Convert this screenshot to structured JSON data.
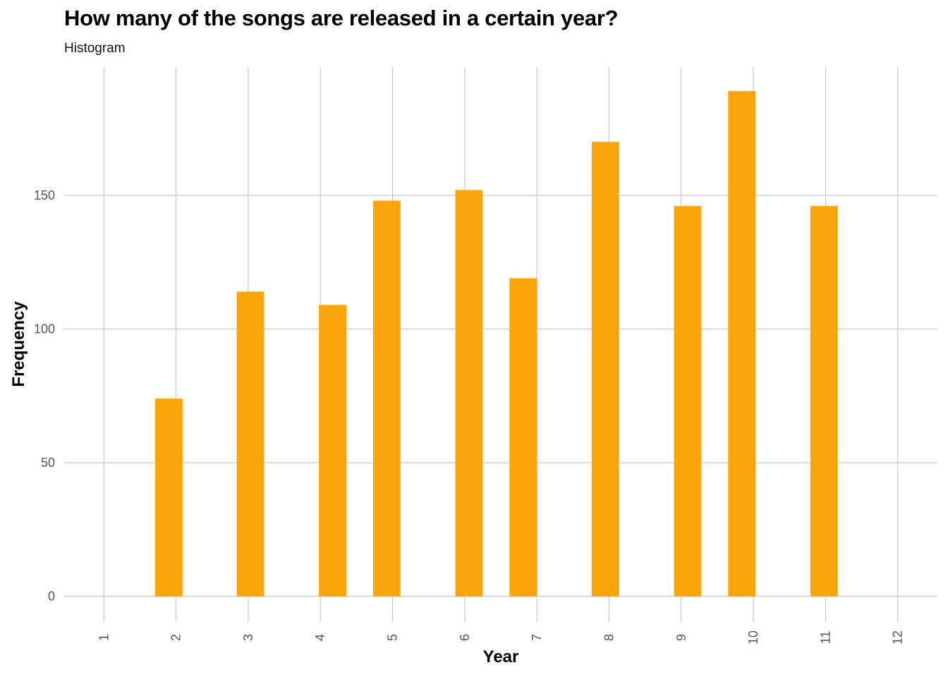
{
  "chart_data": {
    "type": "bar",
    "title": "How many of the songs are released in a certain year?",
    "subtitle": "Histogram",
    "xlabel": "Year",
    "ylabel": "Frequency",
    "x_ticks": [
      "1",
      "2",
      "3",
      "4",
      "5",
      "6",
      "7",
      "8",
      "9",
      "10",
      "11",
      "12"
    ],
    "y_ticks": [
      0,
      50,
      100,
      150
    ],
    "xlim": [
      0.45,
      12.55
    ],
    "ylim": [
      -8,
      198
    ],
    "bars": [
      {
        "x": 1.9,
        "value": 74
      },
      {
        "x": 3.03,
        "value": 114
      },
      {
        "x": 4.17,
        "value": 109
      },
      {
        "x": 4.92,
        "value": 148
      },
      {
        "x": 6.06,
        "value": 152
      },
      {
        "x": 6.81,
        "value": 119
      },
      {
        "x": 7.95,
        "value": 170
      },
      {
        "x": 9.09,
        "value": 146
      },
      {
        "x": 9.84,
        "value": 189
      },
      {
        "x": 10.98,
        "value": 146
      }
    ],
    "bar_width": 0.38,
    "grid": true,
    "bar_color": "#FCA50A",
    "grid_color": "#BFBFBF"
  }
}
